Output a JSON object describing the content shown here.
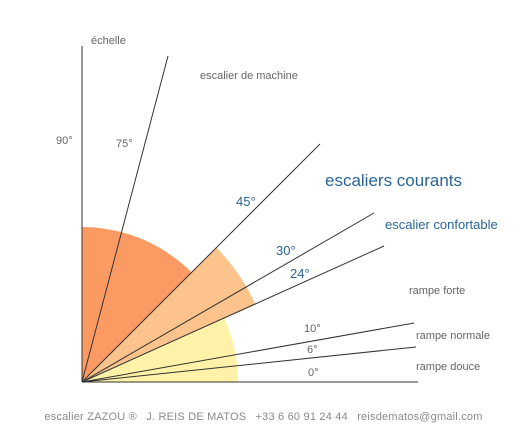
{
  "diagram": {
    "axis_label_vertical": "échelle",
    "axis_label_90": "90°",
    "colors": {
      "zone_steep": "#fc9a64",
      "zone_current": "#fcc48c",
      "zone_gentle": "#fdf2a8",
      "line": "#333333",
      "grey_text": "#666666",
      "blue_text": "#2a6496"
    },
    "rays": [
      {
        "angle": 75,
        "angle_label": "75°",
        "name": "escalier de machine",
        "style": "grey"
      },
      {
        "angle": 45,
        "angle_label": "45°",
        "name": "escaliers courants",
        "style": "blue-large"
      },
      {
        "angle": 30,
        "angle_label": "30°",
        "name": "escalier confortable",
        "style": "blue"
      },
      {
        "angle": 24,
        "angle_label": "24°",
        "name": "",
        "style": "blue"
      },
      {
        "angle": 10,
        "angle_label": "10°",
        "name": "rampe normale",
        "style": "grey"
      },
      {
        "angle": 6,
        "angle_label": "6°",
        "name": "rampe douce",
        "style": "grey"
      },
      {
        "angle": 0,
        "angle_label": "0°",
        "name": "",
        "style": "grey"
      }
    ],
    "extra_label": "rampe forte"
  },
  "footer": {
    "product": "escalier ZAZOU ®",
    "author": "J. REIS DE MATOS",
    "phone": "+33 6 60 91 24 44",
    "email": "reisdematos@gmail.com"
  }
}
